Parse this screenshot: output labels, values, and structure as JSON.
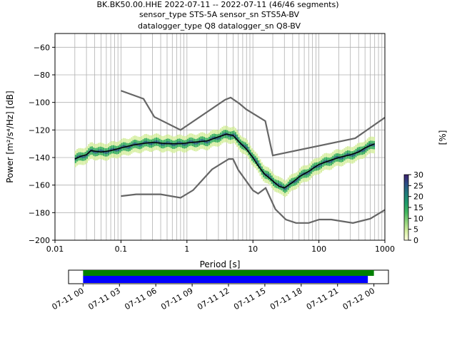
{
  "title_lines": [
    "BK.BK50.00.HHE   2022-07-11 -- 2022-07-11  (46/46 segments)",
    "sensor_type STS-5A sensor_sn STS5A-BV",
    "datalogger_type Q8 datalogger_sn Q8-BV"
  ],
  "chart_data": [
    {
      "type": "heatmap",
      "name": "ppsd",
      "xlabel": "Period [s]",
      "ylabel": "Power [m²/s⁴/Hz] [dB]",
      "xscale": "log",
      "xlim": [
        0.01,
        1000
      ],
      "ylim": [
        -200,
        -50
      ],
      "x_ticks": [
        0.01,
        0.1,
        1,
        10,
        100,
        1000
      ],
      "x_tick_labels": [
        "0.01",
        "0.1",
        "1",
        "10",
        "100",
        "1000"
      ],
      "y_ticks": [
        -200,
        -180,
        -160,
        -140,
        -120,
        -100,
        -80,
        -60
      ],
      "y_tick_labels": [
        "−200",
        "−180",
        "−160",
        "−140",
        "−120",
        "−100",
        "−80",
        "−60"
      ],
      "grid": true,
      "colorbar": {
        "label": "[%]",
        "range": [
          0,
          30
        ],
        "ticks": [
          0,
          5,
          10,
          15,
          20,
          25,
          30
        ],
        "colors": [
          "#ffffe0",
          "#d4ee9f",
          "#8fd27b",
          "#41b65f",
          "#1e9a6a",
          "#1f7a7a",
          "#2b4e86",
          "#3b1f6e"
        ]
      },
      "mode_line": {
        "name": "mode",
        "color": "#000000",
        "x": [
          0.02,
          0.025,
          0.03,
          0.035,
          0.05,
          0.07,
          0.1,
          0.15,
          0.2,
          0.3,
          0.5,
          0.8,
          1.2,
          2,
          3,
          4,
          5,
          6,
          8,
          10,
          12,
          15,
          20,
          25,
          30,
          40,
          50,
          70,
          100,
          150,
          200,
          300,
          400,
          500,
          700
        ],
        "y": [
          -141,
          -139,
          -138,
          -135,
          -136,
          -135,
          -133,
          -131,
          -130,
          -129,
          -130,
          -130,
          -129,
          -128,
          -125,
          -123,
          -124,
          -128,
          -134,
          -140,
          -146,
          -152,
          -157,
          -161,
          -162,
          -158,
          -154,
          -150,
          -145,
          -142,
          -140,
          -138,
          -136,
          -133,
          -130
        ]
      },
      "noise_models": [
        {
          "name": "high-noise-model",
          "color": "#666666",
          "x": [
            0.1,
            0.22,
            0.32,
            0.8,
            3.8,
            4.6,
            6.3,
            7.9,
            15.4,
            20,
            354.8,
            1000
          ],
          "y": [
            -91.5,
            -97.4,
            -110.5,
            -120,
            -98,
            -96.5,
            -101,
            -105,
            -113.5,
            -138.5,
            -126,
            -111
          ]
        },
        {
          "name": "low-noise-model",
          "color": "#666666",
          "x": [
            0.1,
            0.17,
            0.4,
            0.8,
            1.24,
            2.4,
            4.3,
            5,
            6,
            10,
            12,
            15.6,
            21.9,
            31.6,
            45,
            70,
            101,
            154,
            328,
            600,
            1000
          ],
          "y": [
            -168,
            -166.7,
            -166.7,
            -169.2,
            -163.7,
            -148.6,
            -141.1,
            -141.1,
            -149,
            -163.8,
            -166.2,
            -162.1,
            -177.5,
            -185,
            -187.5,
            -187.5,
            -185,
            -185,
            -187.5,
            -184.4,
            -178
          ]
        }
      ],
      "density_bands": [
        {
          "x": [
            0.02,
            0.025,
            0.03,
            0.035,
            0.05,
            0.07,
            0.1,
            0.15,
            0.2,
            0.3,
            0.5,
            0.8,
            1.2,
            2,
            3,
            4,
            5,
            6,
            8,
            10,
            12,
            15,
            20,
            25,
            30,
            40,
            50,
            70,
            100,
            150,
            200,
            300,
            400,
            500,
            700
          ],
          "halfwidth_db": 6,
          "level": 4
        },
        {
          "x": [
            0.02,
            0.025,
            0.03,
            0.035,
            0.05,
            0.07,
            0.1,
            0.15,
            0.2,
            0.3,
            0.5,
            0.8,
            1.2,
            2,
            3,
            4,
            5,
            6,
            8,
            10,
            12,
            15,
            20,
            25,
            30,
            40,
            50,
            70,
            100,
            150,
            200,
            300,
            400,
            500,
            700
          ],
          "halfwidth_db": 3,
          "level": 14
        },
        {
          "x": [
            0.02,
            0.025,
            0.03,
            0.035,
            0.05,
            0.07,
            0.1,
            0.15,
            0.2,
            0.3,
            0.5,
            0.8,
            1.2,
            2,
            3,
            4,
            5,
            6,
            8,
            10,
            12,
            15,
            20,
            25,
            30,
            40,
            50,
            70,
            100,
            150,
            200,
            300,
            400,
            500,
            700
          ],
          "halfwidth_db": 1,
          "level": 24
        }
      ]
    },
    {
      "type": "timeline",
      "name": "data-coverage",
      "x_ticks": [
        "07-11 00",
        "07-11 03",
        "07-11 06",
        "07-11 09",
        "07-11 12",
        "07-11 15",
        "07-11 18",
        "07-11 21",
        "07-12 00"
      ],
      "xlim_hours": [
        -1.2,
        25.2
      ],
      "bars": [
        {
          "name": "available",
          "color": "#008000",
          "start_hour": 0,
          "end_hour": 24
        },
        {
          "name": "used",
          "color": "#0000ff",
          "start_hour": 0,
          "end_hour": 23.5
        }
      ]
    }
  ]
}
